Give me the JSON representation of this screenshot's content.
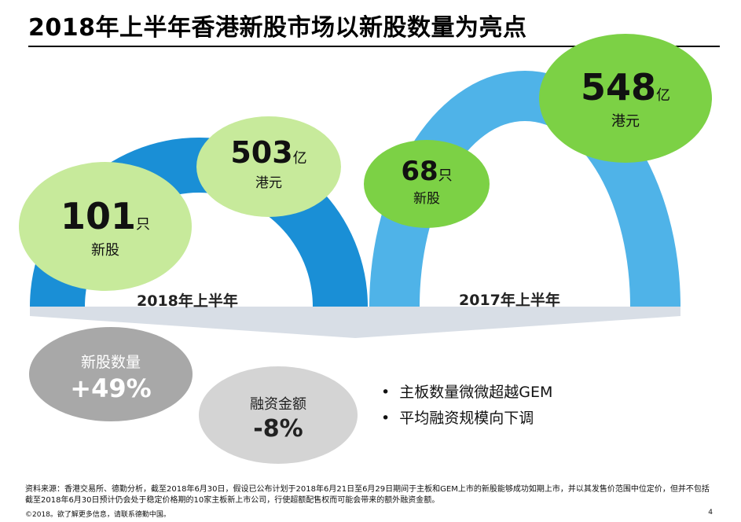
{
  "title": "2018年上半年香港新股市场以新股数量为亮点",
  "colors": {
    "arch_2018": "#1a8fd6",
    "arch_2017": "#4fb3e8",
    "bubble_light_green": "#c7ea9b",
    "bubble_green": "#7cd145",
    "grey_dark": "#a8a8a8",
    "grey_light": "#d4d4d4",
    "band_grey": "#d8dee6"
  },
  "period_2018": {
    "label": "2018年上半年",
    "ipo_count": "101",
    "ipo_count_unit": "只",
    "ipo_count_caption": "新股",
    "funds_raised": "503",
    "funds_unit": "亿",
    "funds_caption": "港元"
  },
  "period_2017": {
    "label": "2017年上半年",
    "ipo_count": "68",
    "ipo_count_unit": "只",
    "ipo_count_caption": "新股",
    "funds_raised": "548",
    "funds_unit": "亿",
    "funds_caption": "港元"
  },
  "change_count": {
    "label": "新股数量",
    "value": "+49%"
  },
  "change_funds": {
    "label": "融资金额",
    "value": "-8%"
  },
  "bullets": [
    "主板数量微微超越GEM",
    "平均融资规模向下调"
  ],
  "source_text": "资料来源：香港交易所、德勤分析，截至2018年6月30日，假设已公布计划于2018年6月21日至6月29日期间于主板和GEM上市的新股能够成功如期上市，并以其发售价范围中位定价，但并不包括截至2018年6月30日预计仍会处于稳定价格期的10家主板新上市公司，行使超额配售权而可能会带来的额外融资金额。",
  "footer": "©2018。欲了解更多信息，请联系德勤中国。",
  "page_number": "4"
}
